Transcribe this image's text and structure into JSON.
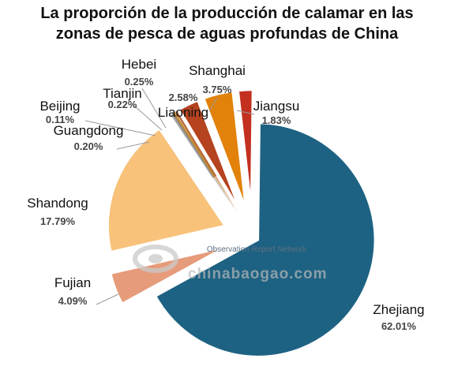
{
  "title_lines": [
    "La proporción de la producción de calamar en las",
    "zonas de pesca de aguas profundas de China"
  ],
  "watermark": {
    "text1": "Observation Report Network",
    "text2": "chinabaogao.com"
  },
  "chart_data": {
    "type": "pie",
    "title": "La proporción de la producción de calamar en las zonas de pesca de aguas profundas de China",
    "unit": "%",
    "slices": [
      {
        "label": "Zhejiang",
        "value": 62.01,
        "value_label": "62.01%",
        "color": "#1e6283"
      },
      {
        "label": "Fujian",
        "value": 4.09,
        "value_label": "4.09%",
        "color": "#e69b7a"
      },
      {
        "label": "Shandong",
        "value": 17.79,
        "value_label": "17.79%",
        "color": "#f8c27a"
      },
      {
        "label": "Guangdong",
        "value": 0.2,
        "value_label": "0.20%",
        "color": "#a8a8a8"
      },
      {
        "label": "Beijing",
        "value": 0.11,
        "value_label": "0.11%",
        "color": "#8c8c8c"
      },
      {
        "label": "Tianjin",
        "value": 0.22,
        "value_label": "0.22%",
        "color": "#c88a2a"
      },
      {
        "label": "Hebei",
        "value": 0.25,
        "value_label": "0.25%",
        "color": "#b86a3c"
      },
      {
        "label": "Liaoning",
        "value": 2.58,
        "value_label": "2.58%",
        "color": "#b5431f"
      },
      {
        "label": "Shanghai",
        "value": 3.75,
        "value_label": "3.75%",
        "color": "#e2820a"
      },
      {
        "label": "Jiangsu",
        "value": 1.83,
        "value_label": "1.83%",
        "color": "#c3301f"
      }
    ]
  }
}
